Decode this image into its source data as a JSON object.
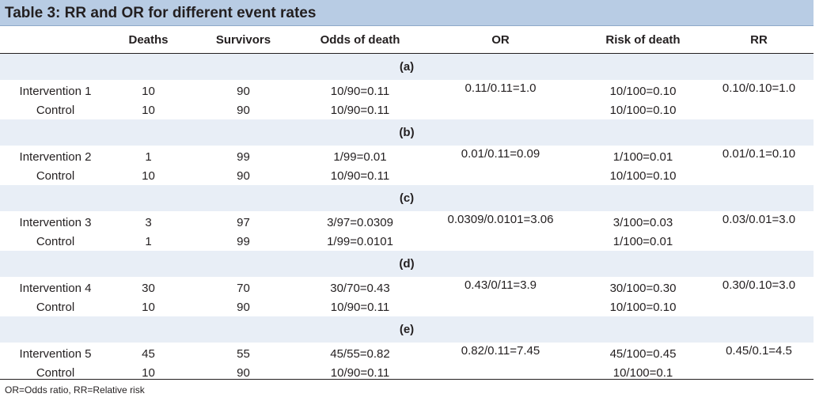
{
  "table": {
    "title": "Table 3: RR and OR for different event rates",
    "columns": [
      "",
      "Deaths",
      "Survivors",
      "Odds of death",
      "OR",
      "Risk of death",
      "RR"
    ],
    "groups": [
      {
        "label": "(a)",
        "rows": [
          {
            "name": "Intervention 1",
            "deaths": "10",
            "survivors": "90",
            "odds": "10/90=0.11",
            "or": "0.11/0.11=1.0",
            "risk": "10/100=0.10",
            "rr": "0.10/0.10=1.0"
          },
          {
            "name": "Control",
            "deaths": "10",
            "survivors": "90",
            "odds": "10/90=0.11",
            "or": "",
            "risk": "10/100=0.10",
            "rr": ""
          }
        ]
      },
      {
        "label": "(b)",
        "rows": [
          {
            "name": "Intervention 2",
            "deaths": "1",
            "survivors": "99",
            "odds": "1/99=0.01",
            "or": "0.01/0.11=0.09",
            "risk": "1/100=0.01",
            "rr": "0.01/0.1=0.10"
          },
          {
            "name": "Control",
            "deaths": "10",
            "survivors": "90",
            "odds": "10/90=0.11",
            "or": "",
            "risk": "10/100=0.10",
            "rr": ""
          }
        ]
      },
      {
        "label": "(c)",
        "rows": [
          {
            "name": "Intervention 3",
            "deaths": "3",
            "survivors": "97",
            "odds": "3/97=0.0309",
            "or": "0.0309/0.0101=3.06",
            "risk": "3/100=0.03",
            "rr": "0.03/0.01=3.0"
          },
          {
            "name": "Control",
            "deaths": "1",
            "survivors": "99",
            "odds": "1/99=0.0101",
            "or": "",
            "risk": "1/100=0.01",
            "rr": ""
          }
        ]
      },
      {
        "label": "(d)",
        "rows": [
          {
            "name": "Intervention 4",
            "deaths": "30",
            "survivors": "70",
            "odds": "30/70=0.43",
            "or": "0.43/0/11=3.9",
            "risk": "30/100=0.30",
            "rr": "0.30/0.10=3.0"
          },
          {
            "name": "Control",
            "deaths": "10",
            "survivors": "90",
            "odds": "10/90=0.11",
            "or": "",
            "risk": "10/100=0.10",
            "rr": ""
          }
        ]
      },
      {
        "label": "(e)",
        "rows": [
          {
            "name": "Intervention 5",
            "deaths": "45",
            "survivors": "55",
            "odds": "45/55=0.82",
            "or": "0.82/0.11=7.45",
            "risk": "45/100=0.45",
            "rr": "0.45/0.1=4.5"
          },
          {
            "name": "Control",
            "deaths": "10",
            "survivors": "90",
            "odds": "10/90=0.11",
            "or": "",
            "risk": "10/100=0.1",
            "rr": ""
          }
        ]
      }
    ],
    "footnote": "OR=Odds ratio, RR=Relative risk"
  }
}
